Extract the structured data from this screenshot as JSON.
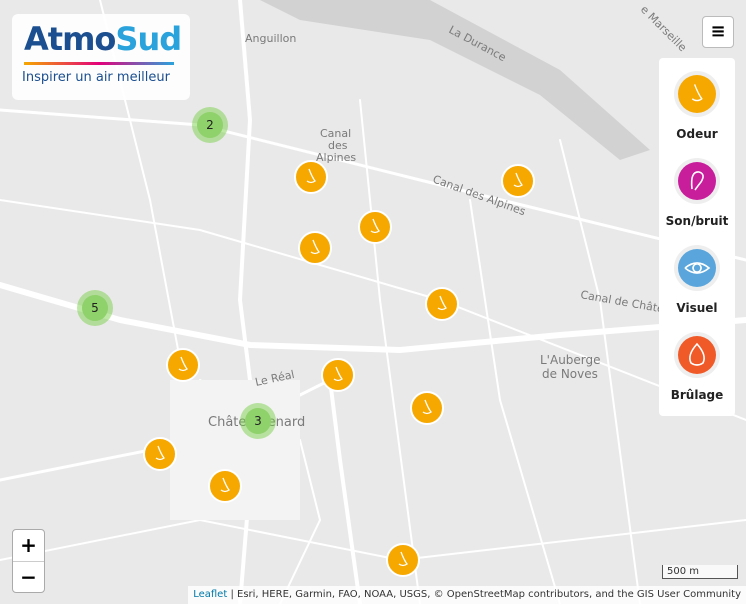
{
  "logo": {
    "atmo": "Atmo",
    "sud": "Sud",
    "tagline": "Inspirer un air meilleur"
  },
  "menu_button": "≡",
  "map_labels": {
    "anguillon": "Anguillon",
    "durance": "La Durance",
    "marseille": "e Marseille",
    "canal_1": "Canal",
    "canal_2": "des",
    "canal_3": "Alpines",
    "canal_alpines": "Canal des Alpines",
    "canal_chateau": "Canal de Château",
    "auberge_1": "L'Auberge",
    "auberge_2": "de Noves",
    "real": "Le Réal",
    "chateaurenard": "Châteaurenard"
  },
  "clusters": [
    2,
    5,
    3
  ],
  "legend": {
    "items": [
      {
        "label": "Odeur"
      },
      {
        "label": "Son/bruit"
      },
      {
        "label": "Visuel"
      },
      {
        "label": "Brûlage"
      }
    ]
  },
  "zoom": {
    "in": "+",
    "out": "−"
  },
  "scale": "500 m",
  "attribution": {
    "link": "Leaflet",
    "text": "| Esri, HERE, Garmin, FAO, NOAA, USGS, © OpenStreetMap contributors, and the GIS User Community"
  }
}
